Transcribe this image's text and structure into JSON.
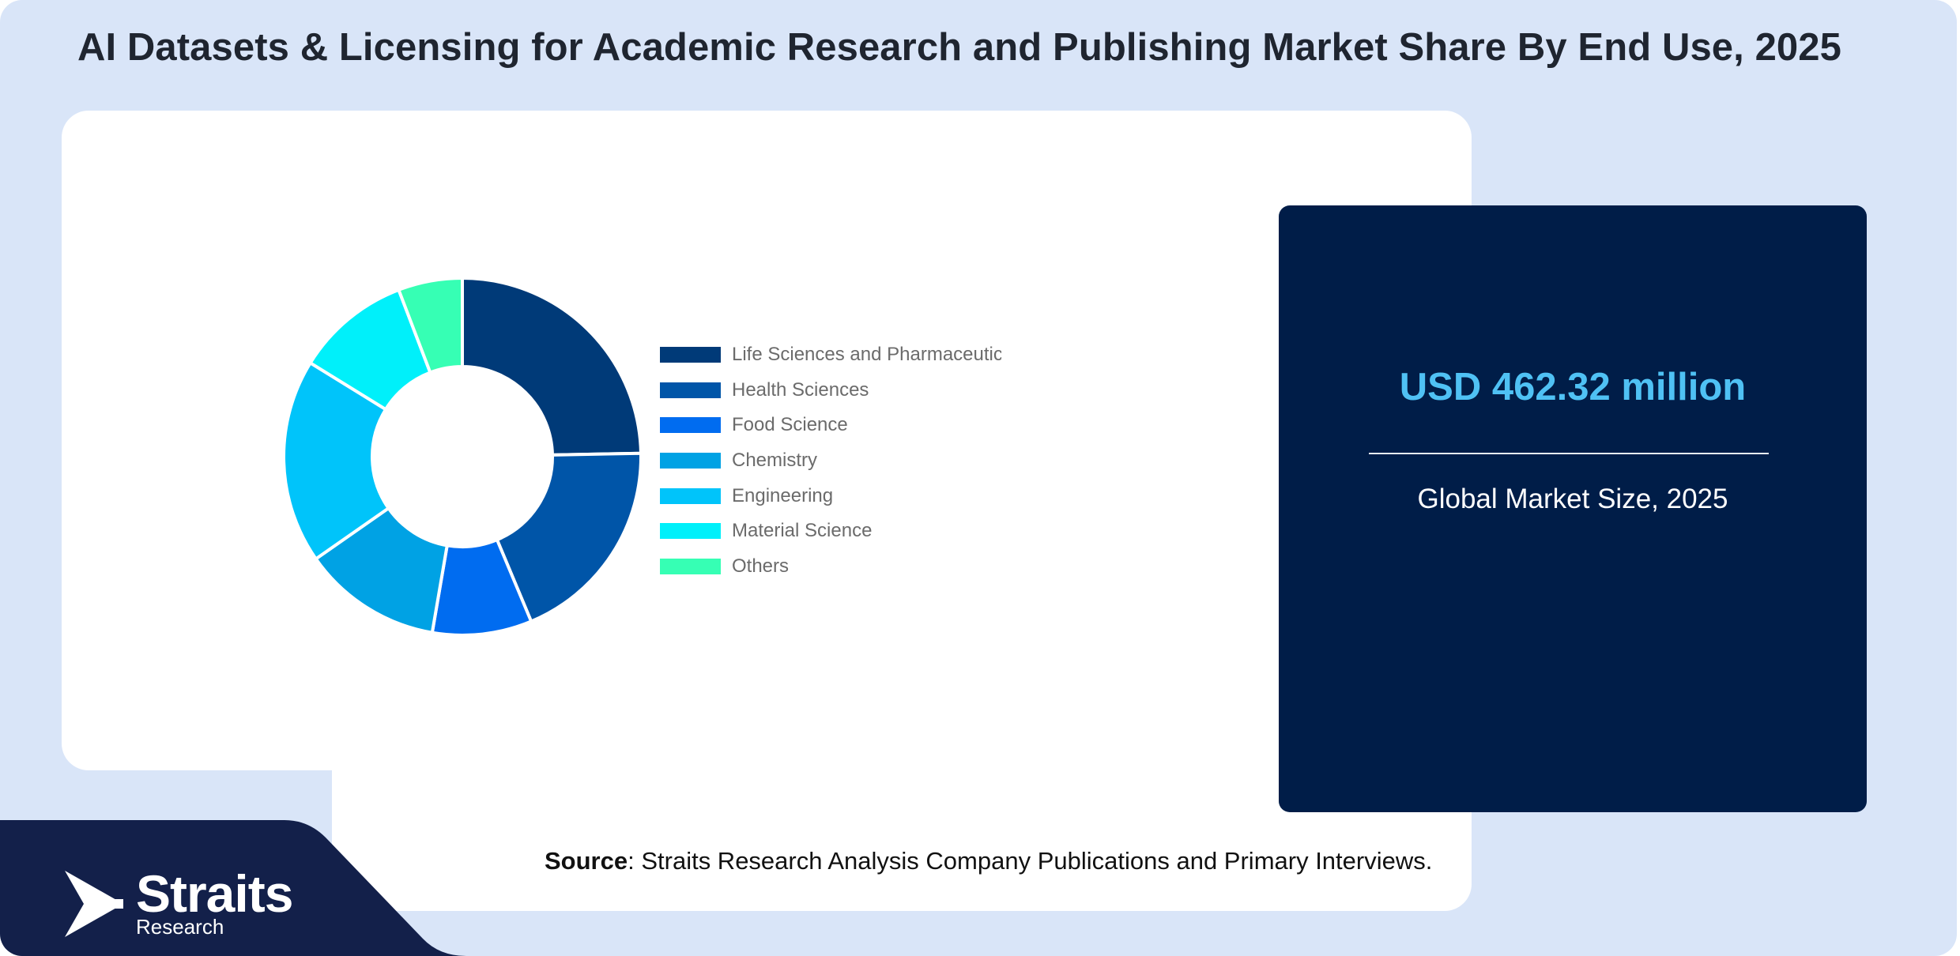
{
  "title": "AI Datasets & Licensing for Academic Research and Publishing Market Share By End Use, 2025",
  "stat": {
    "value": "USD 462.32 million",
    "label": "Global Market Size, 2025"
  },
  "source": {
    "label": "Source",
    "text": ": Straits Research Analysis Company Publications and Primary Interviews."
  },
  "brand": {
    "name": "Straits",
    "sub": "Research"
  },
  "colors": {
    "background": "#d9e5f8",
    "card": "#001d48",
    "accent": "#4fc1f4",
    "brand_band": "#13204a"
  },
  "chart_data": {
    "type": "pie",
    "variant": "donut",
    "legend_position": "right",
    "categories": [
      "Life Sciences and Pharmaceuticals",
      "Health Sciences",
      "Food Science",
      "Chemistry",
      "Engineering",
      "Material Science",
      "Others"
    ],
    "legend_labels": [
      "Life Sciences and Pharmaceutic",
      "Health Sciences",
      "Food Science",
      "Chemistry",
      "Engineering",
      "Material Science",
      "Others"
    ],
    "values": [
      24.7,
      19.0,
      9.0,
      12.6,
      18.5,
      10.4,
      5.8
    ],
    "unit": "%",
    "colors": [
      "#003a78",
      "#0055a8",
      "#006cf0",
      "#00a2e4",
      "#00c4fa",
      "#00f0fa",
      "#36ffb4"
    ]
  }
}
